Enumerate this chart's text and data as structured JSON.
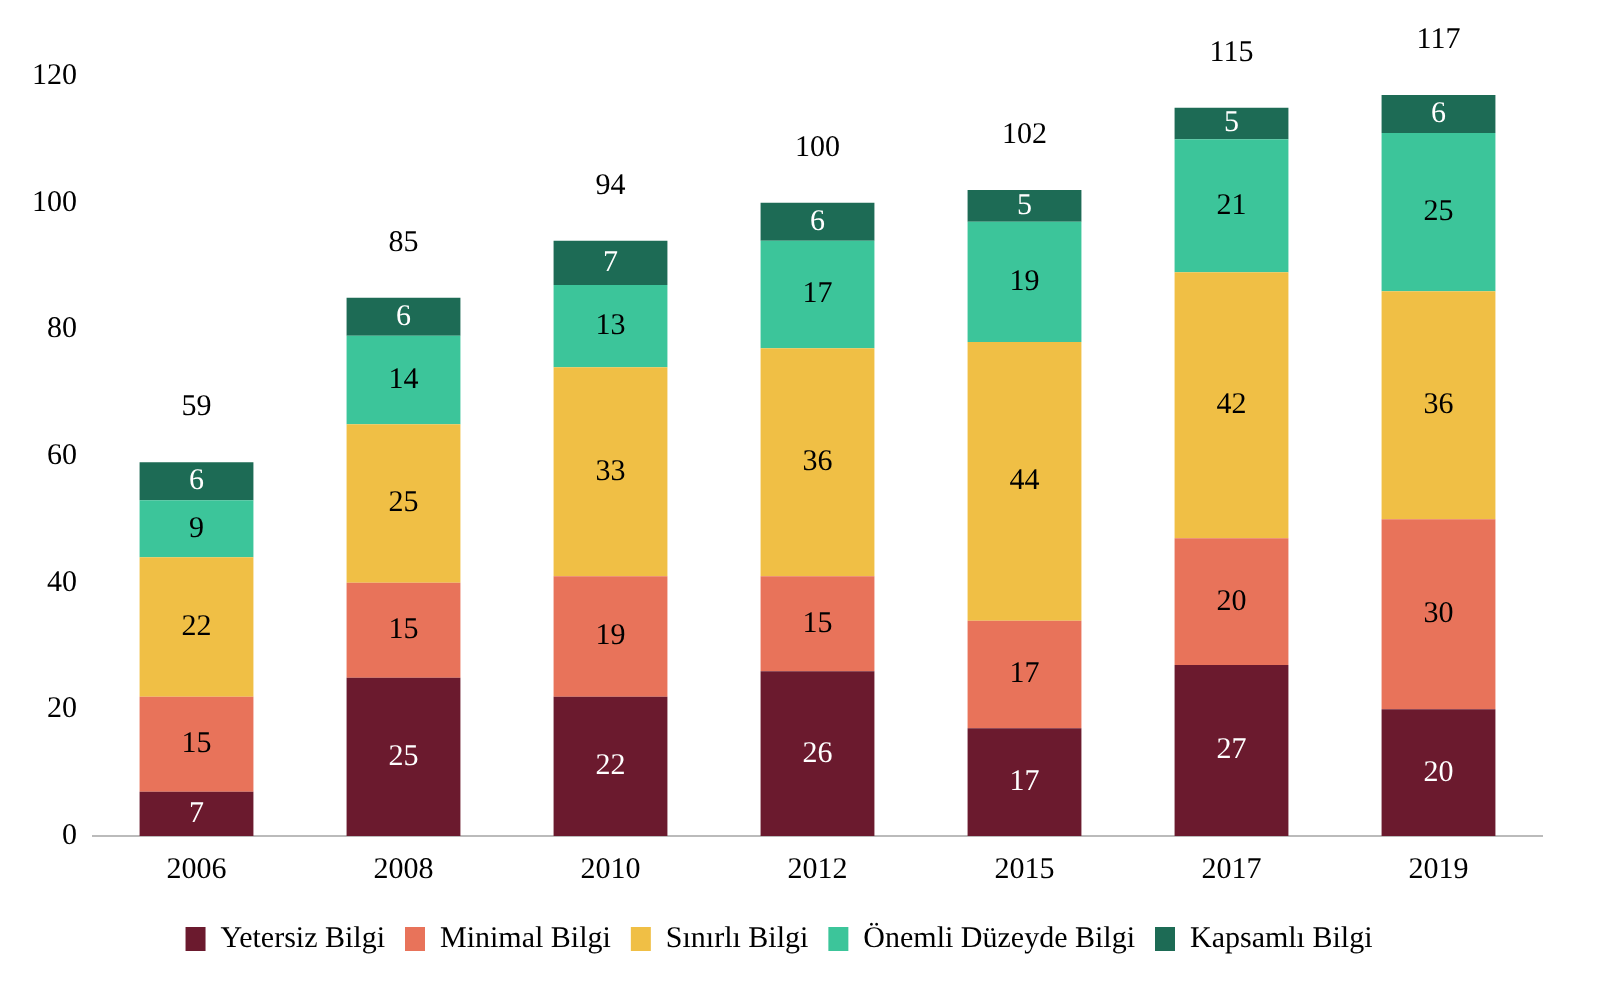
{
  "chart_data": {
    "type": "bar",
    "stacked": true,
    "categories": [
      "2006",
      "2008",
      "2010",
      "2012",
      "2015",
      "2017",
      "2019"
    ],
    "series": [
      {
        "name": "Yetersiz Bilgi",
        "color": "#6b1a2e",
        "values": [
          7,
          25,
          22,
          26,
          17,
          27,
          20
        ]
      },
      {
        "name": "Minimal Bilgi",
        "color": "#e8735a",
        "values": [
          15,
          15,
          19,
          15,
          17,
          20,
          30
        ]
      },
      {
        "name": "Sınırlı Bilgi",
        "color": "#f0bf45",
        "values": [
          22,
          25,
          33,
          36,
          44,
          42,
          36
        ]
      },
      {
        "name": "Önemli Düzeyde Bilgi",
        "color": "#3cc59a",
        "values": [
          9,
          14,
          13,
          17,
          19,
          21,
          25
        ]
      },
      {
        "name": "Kapsamlı Bilgi",
        "color": "#1d6b55",
        "values": [
          6,
          6,
          7,
          6,
          5,
          5,
          6
        ]
      }
    ],
    "ylim": [
      0,
      120
    ],
    "yticks": [
      0,
      20,
      40,
      60,
      80,
      100,
      120
    ],
    "grid": false,
    "legend": "bottom",
    "data_labels": true,
    "totals": [
      "59",
      "85",
      "94",
      "100",
      "102",
      "115",
      "117"
    ]
  }
}
